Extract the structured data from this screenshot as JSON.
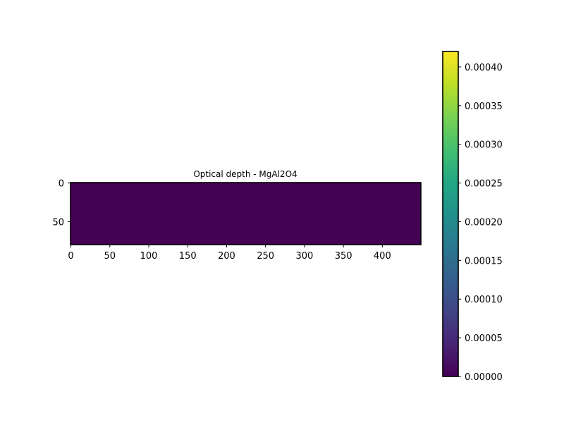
{
  "chart_data": {
    "type": "heatmap",
    "title": "Optical depth - MgAl2O4",
    "xlabel": "",
    "ylabel": "",
    "xlim": [
      -0.5,
      449.5
    ],
    "ylim": [
      79.5,
      -0.5
    ],
    "x_ticks": [
      0,
      50,
      100,
      150,
      200,
      250,
      300,
      350,
      400
    ],
    "x_tick_labels": [
      "0",
      "50",
      "100",
      "150",
      "200",
      "250",
      "300",
      "350",
      "400"
    ],
    "y_ticks": [
      0,
      50
    ],
    "y_tick_labels": [
      "0",
      "50"
    ],
    "values": [
      [
        0
      ]
    ],
    "image_fill_value": 0.0,
    "colormap": "viridis",
    "colorbar": {
      "range": [
        0,
        0.00042
      ],
      "ticks": [
        0,
        5e-05,
        0.0001,
        0.00015,
        0.0002,
        0.00025,
        0.0003,
        0.00035,
        0.0004
      ],
      "tick_labels": [
        "0.00000",
        "0.00005",
        "0.00010",
        "0.00015",
        "0.00020",
        "0.00025",
        "0.00030",
        "0.00035",
        "0.00040"
      ]
    },
    "grid": false,
    "colors": {
      "low": "#440154",
      "high": "#fde725"
    }
  }
}
